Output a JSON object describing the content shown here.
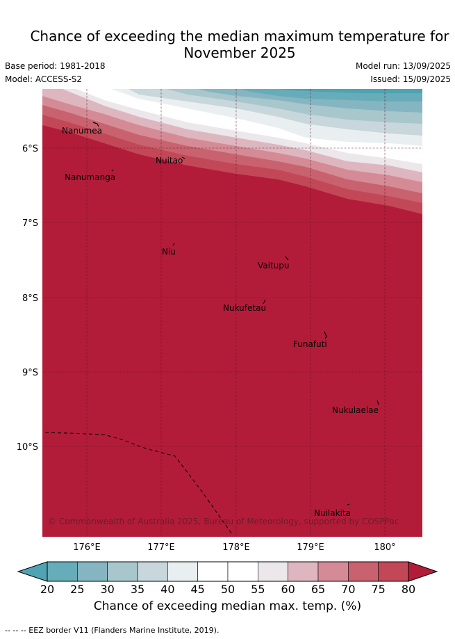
{
  "header": {
    "title_line1": "Chance of exceeding the median maximum temperature for",
    "title_line2": "November 2025",
    "base_period": "Base period: 1981-2018",
    "model": "Model: ACCESS-S2",
    "model_run": "Model run: 13/09/2025",
    "issued": "Issued: 15/09/2025"
  },
  "map": {
    "lat_ticks": [
      "6°S",
      "7°S",
      "8°S",
      "9°S",
      "10°S"
    ],
    "lon_ticks": [
      "176°E",
      "177°E",
      "178°E",
      "179°E",
      "180°"
    ],
    "places": [
      "Nanumea",
      "Nuitao",
      "Nanumanga",
      "Niu",
      "Vaitupu",
      "Nukufetau",
      "Funafuti",
      "Nukulaelae",
      "Nuilakita"
    ],
    "copyright": "© Commonwealth of Australia 2025, Bureau of Meteorology, supported by COSPPac",
    "dominant_color": "#b31c39"
  },
  "colorbar": {
    "ticks": [
      "20",
      "25",
      "30",
      "35",
      "40",
      "45",
      "50",
      "55",
      "60",
      "65",
      "70",
      "75",
      "80"
    ],
    "colors": [
      "#67adb9",
      "#86b5c2",
      "#a8c7cd",
      "#c8d7dc",
      "#e9eff1",
      "#ffffff",
      "#ffffff",
      "#ebe7ea",
      "#ddb6bf",
      "#d48b95",
      "#c9626f",
      "#c24858"
    ],
    "low_extend_color": "#4fa3b2",
    "high_extend_color": "#b31c39",
    "title": "Chance of exceeding median max. temp. (%)"
  },
  "footnote": "--  --  -- EEZ border V11 (Flanders Marine Institute, 2019)."
}
